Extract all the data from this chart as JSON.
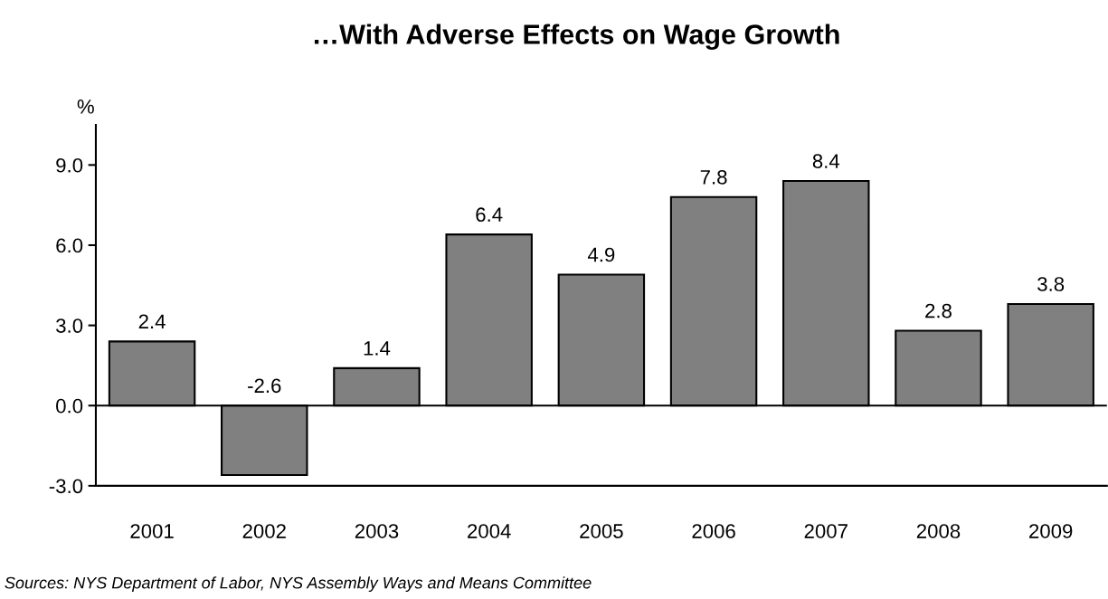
{
  "chart_data": {
    "type": "bar",
    "title": "…With Adverse Effects on Wage Growth",
    "ylabel": "%",
    "categories": [
      "2001",
      "2002",
      "2003",
      "2004",
      "2005",
      "2006",
      "2007",
      "2008",
      "2009"
    ],
    "values": [
      2.4,
      -2.6,
      1.4,
      6.4,
      4.9,
      7.8,
      8.4,
      2.8,
      3.8
    ],
    "color": "#808080",
    "ylim": [
      -3,
      10.5
    ],
    "yticks": [
      {
        "value": -3,
        "label": "-3.0"
      },
      {
        "value": 0,
        "label": "0.0"
      },
      {
        "value": 3,
        "label": "3.0"
      },
      {
        "value": 6,
        "label": "6.0"
      },
      {
        "value": 9,
        "label": "9.0"
      }
    ],
    "data_labels": true,
    "ref_lines": [
      {
        "axis": "y",
        "value": 0,
        "color": "#000000"
      }
    ],
    "annotations": [
      "Sources: NYS Department of Labor, NYS Assembly Ways and Means Committee"
    ]
  }
}
